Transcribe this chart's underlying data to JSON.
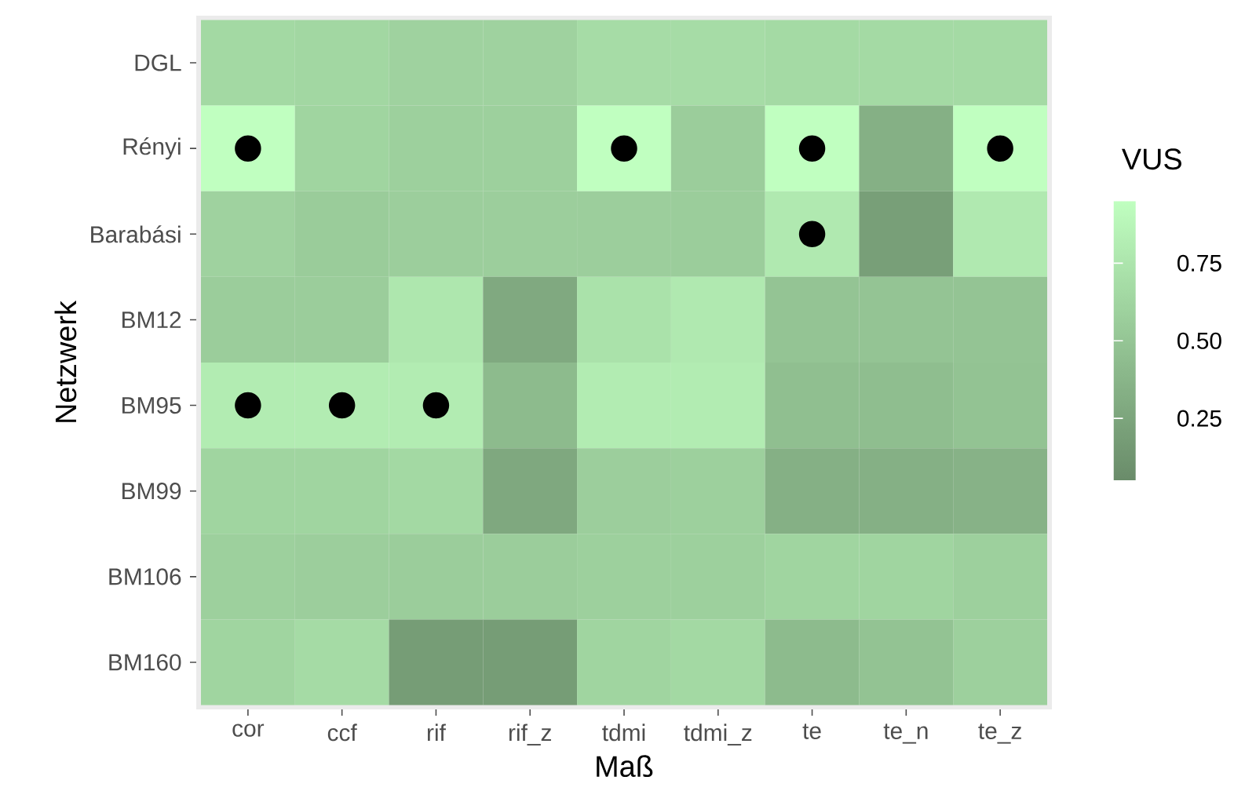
{
  "chart_data": {
    "type": "heatmap",
    "xlabel": "Maß",
    "ylabel": "Netzwerk",
    "clabel": "VUS",
    "categories": [
      "cor",
      "ccf",
      "rif",
      "rif_z",
      "tdmi",
      "tdmi_z",
      "te",
      "te_n",
      "te_z"
    ],
    "y_categories": [
      "DGL",
      "Rényi",
      "Barabási",
      "BM12",
      "BM95",
      "BM99",
      "BM106",
      "BM160"
    ],
    "cells": [
      [
        0.65,
        0.64,
        0.6,
        0.6,
        0.68,
        0.68,
        0.66,
        0.66,
        0.66
      ],
      [
        0.95,
        0.62,
        0.58,
        0.58,
        0.95,
        0.56,
        0.95,
        0.33,
        0.95
      ],
      [
        0.6,
        0.55,
        0.57,
        0.57,
        0.57,
        0.56,
        0.78,
        0.2,
        0.78
      ],
      [
        0.56,
        0.56,
        0.76,
        0.28,
        0.72,
        0.78,
        0.49,
        0.49,
        0.49
      ],
      [
        0.8,
        0.8,
        0.8,
        0.42,
        0.8,
        0.8,
        0.45,
        0.44,
        0.48
      ],
      [
        0.62,
        0.62,
        0.65,
        0.27,
        0.57,
        0.58,
        0.33,
        0.33,
        0.35
      ],
      [
        0.58,
        0.57,
        0.56,
        0.56,
        0.58,
        0.58,
        0.62,
        0.62,
        0.58
      ],
      [
        0.62,
        0.67,
        0.18,
        0.18,
        0.62,
        0.65,
        0.42,
        0.48,
        0.58
      ]
    ],
    "cell_labels": [
      [
        null,
        null,
        null,
        null,
        null,
        null,
        null,
        null,
        null
      ],
      [
        "●",
        null,
        null,
        null,
        "●",
        null,
        "●",
        null,
        "●"
      ],
      [
        null,
        null,
        null,
        null,
        null,
        null,
        "●",
        null,
        null
      ],
      [
        null,
        null,
        null,
        null,
        null,
        null,
        null,
        null,
        null
      ],
      [
        "●",
        "●",
        "●",
        null,
        null,
        null,
        null,
        null,
        null
      ],
      [
        null,
        null,
        null,
        null,
        null,
        null,
        null,
        null,
        null
      ],
      [
        null,
        null,
        null,
        null,
        null,
        null,
        null,
        null,
        null
      ],
      [
        null,
        null,
        null,
        null,
        null,
        null,
        null,
        null,
        null
      ]
    ],
    "clim": [
      0.05,
      0.95
    ],
    "cticks": [
      0.25,
      {
        "value": 0.5,
        "label": "0.50"
      },
      0.75
    ]
  }
}
